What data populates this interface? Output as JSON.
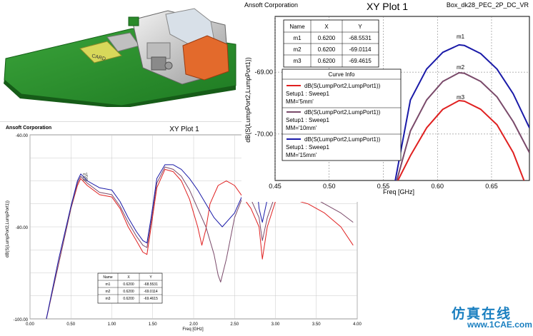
{
  "cad_image": {
    "card_label": "CARD"
  },
  "plot_small": {
    "company": "Ansoft Corporation",
    "title": "XY Plot 1",
    "xlabel": "Freq [GHz]",
    "ylabel": "dB(S(LumpPort2,LumpPort1))",
    "x_ticks": [
      "0.00",
      "0.50",
      "1.00",
      "1.50",
      "2.00",
      "2.50",
      "3.00",
      "3.50",
      "4.00"
    ],
    "y_ticks": [
      "-60.00",
      "-80.00",
      "-100.00"
    ],
    "marker_table": {
      "headers": [
        "Name",
        "X",
        "Y"
      ],
      "rows": [
        [
          "m1",
          "0.6200",
          "-68.5531"
        ],
        [
          "m2",
          "0.6200",
          "-69.0114"
        ],
        [
          "m3",
          "0.6200",
          "-69.4615"
        ]
      ]
    }
  },
  "plot_large": {
    "company": "Ansoft Corporation",
    "title": "XY Plot 1",
    "design": "Box_dk28_PEC_2P_DC_VR",
    "xlabel": "Freq [GHz]",
    "ylabel": "dB(S(LumpPort2,LumpPort1))",
    "x_ticks": [
      "0.45",
      "0.50",
      "0.55",
      "0.60",
      "0.65"
    ],
    "y_ticks": [
      "-69.00",
      "-70.00"
    ],
    "markers": [
      "m1",
      "m2",
      "m3"
    ],
    "marker_table": {
      "headers": [
        "Name",
        "X",
        "Y"
      ],
      "rows": [
        [
          "m1",
          "0.6200",
          "-68.5531"
        ],
        [
          "m2",
          "0.6200",
          "-69.0114"
        ],
        [
          "m3",
          "0.6200",
          "-69.4615"
        ]
      ]
    },
    "curve_info": {
      "title": "Curve Info",
      "entries": [
        {
          "name": "dB(S(LumpPort2,LumpPort1))",
          "setup": "Setup1 : Sweep1",
          "param": "MM='5mm'",
          "color": "#e02020"
        },
        {
          "name": "dB(S(LumpPort2,LumpPort1))",
          "setup": "Setup1 : Sweep1",
          "param": "MM='10mm'",
          "color": "#7a4a6a"
        },
        {
          "name": "dB(S(LumpPort2,LumpPort1))",
          "setup": "Setup1 : Sweep1",
          "param": "MM='15mm'",
          "color": "#1a1aa8"
        }
      ]
    }
  },
  "watermark": {
    "text1": "仿真在线",
    "text2": "www.1CAE.com"
  },
  "chart_data": [
    {
      "type": "line",
      "title": "XY Plot 1",
      "xlabel": "Freq [GHz]",
      "ylabel": "dB(S(LumpPort2,LumpPort1))",
      "xlim": [
        0,
        4
      ],
      "ylim": [
        -100,
        -60
      ],
      "grid": true,
      "series": [
        {
          "color": "#e02020",
          "x": [
            0.2,
            0.35,
            0.5,
            0.58,
            0.62,
            0.7,
            0.85,
            1.0,
            1.1,
            1.2,
            1.3,
            1.38,
            1.43,
            1.48,
            1.55,
            1.65,
            1.75,
            1.85,
            1.95,
            2.05,
            2.1,
            2.15,
            2.2,
            2.3,
            2.4,
            2.5,
            2.6,
            2.7,
            2.8,
            2.84,
            2.9,
            3.0,
            3.2,
            3.4,
            3.6,
            3.8,
            3.95
          ],
          "y": [
            -100,
            -88,
            -76,
            -71,
            -69.5,
            -71,
            -73,
            -73.5,
            -76,
            -80,
            -83,
            -85.5,
            -86,
            -80,
            -71.5,
            -67.5,
            -68,
            -70,
            -74,
            -80,
            -84,
            -80.5,
            -75,
            -71,
            -70,
            -71,
            -73.5,
            -76,
            -80,
            -87,
            -80,
            -74.5,
            -74,
            -75,
            -77,
            -80,
            -84
          ]
        },
        {
          "color": "#7a4a6a",
          "x": [
            0.2,
            0.35,
            0.5,
            0.58,
            0.62,
            0.7,
            0.85,
            1.0,
            1.1,
            1.2,
            1.3,
            1.38,
            1.43,
            1.48,
            1.55,
            1.65,
            1.75,
            1.85,
            1.95,
            2.05,
            2.15,
            2.25,
            2.3,
            2.33,
            2.4,
            2.5,
            2.6,
            2.7,
            2.8,
            2.84,
            2.9,
            3.0,
            3.2,
            3.4,
            3.6,
            3.8,
            3.95
          ],
          "y": [
            -100,
            -88,
            -76,
            -70.5,
            -69,
            -70.5,
            -72.5,
            -73,
            -75.5,
            -79,
            -82,
            -84,
            -84.5,
            -79,
            -70.5,
            -67,
            -67.5,
            -69,
            -72,
            -76,
            -80,
            -86,
            -90.5,
            -92,
            -87,
            -78,
            -73.5,
            -74,
            -78,
            -83,
            -78,
            -73,
            -72,
            -73,
            -75,
            -77,
            -79
          ]
        },
        {
          "color": "#1a1aa8",
          "x": [
            0.2,
            0.35,
            0.5,
            0.58,
            0.62,
            0.7,
            0.85,
            1.0,
            1.1,
            1.2,
            1.3,
            1.38,
            1.43,
            1.48,
            1.55,
            1.65,
            1.75,
            1.85,
            1.95,
            2.05,
            2.15,
            2.25,
            2.35,
            2.5,
            2.6,
            2.7,
            2.75,
            2.8,
            2.84,
            2.9,
            3.0,
            3.2,
            3.4,
            3.6,
            3.8,
            3.95
          ],
          "y": [
            -100,
            -87,
            -75.5,
            -70,
            -68.5,
            -70,
            -71.5,
            -72,
            -74.5,
            -78,
            -81,
            -83,
            -83.5,
            -78,
            -69.5,
            -66.5,
            -66.5,
            -67.5,
            -69.5,
            -72,
            -75,
            -78,
            -80,
            -77,
            -73,
            -68.5,
            -67,
            -76,
            -79,
            -74,
            -70.5,
            -69,
            -69.5,
            -70.5,
            -71.5,
            -72
          ]
        }
      ]
    },
    {
      "type": "line",
      "title": "XY Plot 1",
      "xlabel": "Freq [GHz]",
      "ylabel": "dB(S(LumpPort2,LumpPort1))",
      "xlim": [
        0.45,
        0.685
      ],
      "ylim": [
        -70.75,
        -68.1
      ],
      "grid": true,
      "series": [
        {
          "name": "MM='5mm'",
          "color": "#e02020",
          "x": [
            0.5635,
            0.575,
            0.59,
            0.605,
            0.62,
            0.625,
            0.64,
            0.655,
            0.67,
            0.68
          ],
          "y": [
            -70.75,
            -70.35,
            -69.9,
            -69.6,
            -69.46,
            -69.47,
            -69.6,
            -69.85,
            -70.3,
            -70.75
          ]
        },
        {
          "name": "MM='10mm'",
          "color": "#7a4a6a",
          "x": [
            0.5625,
            0.575,
            0.59,
            0.605,
            0.62,
            0.625,
            0.64,
            0.655,
            0.67,
            0.685
          ],
          "y": [
            -70.75,
            -69.95,
            -69.45,
            -69.15,
            -69.01,
            -69.02,
            -69.15,
            -69.4,
            -69.8,
            -70.3
          ]
        },
        {
          "name": "MM='15mm'",
          "color": "#1a1aa8",
          "x": [
            0.561,
            0.575,
            0.59,
            0.605,
            0.62,
            0.625,
            0.64,
            0.655,
            0.67,
            0.685
          ],
          "y": [
            -70.75,
            -69.45,
            -68.95,
            -68.68,
            -68.56,
            -68.57,
            -68.7,
            -68.95,
            -69.35,
            -69.9
          ]
        }
      ]
    }
  ]
}
